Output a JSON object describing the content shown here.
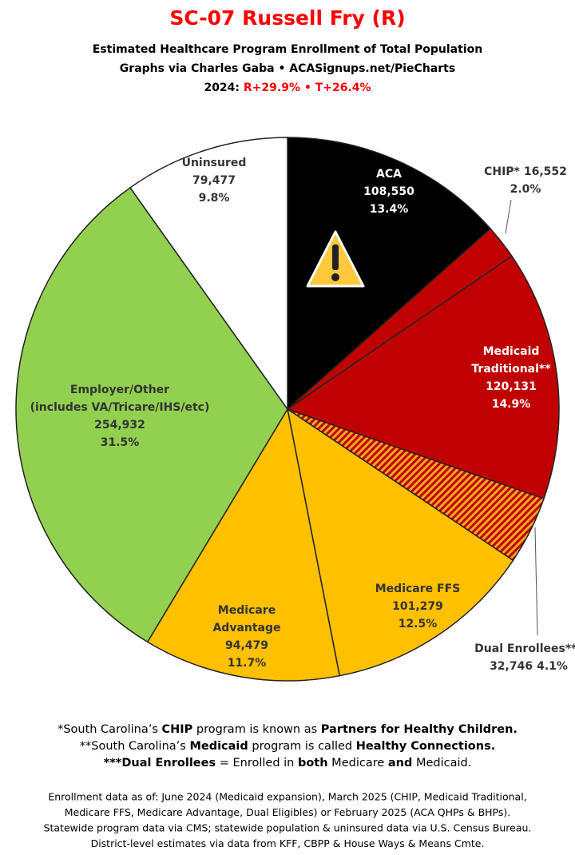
{
  "header": {
    "title": "SC-07 Russell Fry (R)",
    "subtitle": "Estimated Healthcare Program Enrollment of Total Population",
    "credit": "Graphs via Charles Gaba  •  ACASignups.net/PieCharts",
    "margin_year": "2024:",
    "margins": "R+29.9% • T+26.4%"
  },
  "chart_data": {
    "type": "pie",
    "categories": [
      "ACA",
      "CHIP*",
      "Medicaid\nTraditional**",
      "Dual Enrollees***",
      "Medicare FFS",
      "Medicare\nAdvantage",
      "Employer/Other\n(includes VA/Tricare/IHS/etc)",
      "Uninsured"
    ],
    "values": [
      108550,
      16552,
      120131,
      32746,
      101279,
      94479,
      254932,
      79477
    ],
    "value_labels": [
      "108,550",
      "16,552",
      "120,131",
      "32,746",
      "101,279",
      "94,479",
      "254,932",
      "79,477"
    ],
    "percent_labels": [
      "13.4%",
      "2.0%",
      "14.9%",
      "4.1%",
      "12.5%",
      "11.7%",
      "31.5%",
      "9.8%"
    ],
    "colors": [
      "#000000",
      "#c00000",
      "#c00000",
      "#c00000",
      "#ffc000",
      "#ffc000",
      "#92d050",
      "#ffffff"
    ],
    "hatched": [
      false,
      false,
      false,
      true,
      false,
      false,
      false,
      false
    ]
  },
  "footnotes": [
    [
      "*South Carolina’s ",
      "CHIP",
      " program is known as ",
      "Partners for Healthy Children."
    ],
    [
      "**South Carolina’s ",
      "Medicaid",
      " program is called ",
      "Healthy Connections."
    ],
    [
      "",
      "***Dual Enrollees",
      " = Enrolled in ",
      "both",
      " Medicare ",
      "and",
      " Medicaid."
    ]
  ],
  "sources": [
    "Enrollment data as of: June 2024 (Medicaid expansion), March 2025 (CHIP, Medicaid Traditional,",
    "Medicare FFS, Medicare Advantage, Dual Eligibles) or February 2025 (ACA QHPs & BHPs).",
    "Statewide program data via CMS; statewide population & uninsured data via U.S. Census Bureau.",
    "District-level estimates via data from KFF, CBPP & House Ways & Means Cmte."
  ]
}
